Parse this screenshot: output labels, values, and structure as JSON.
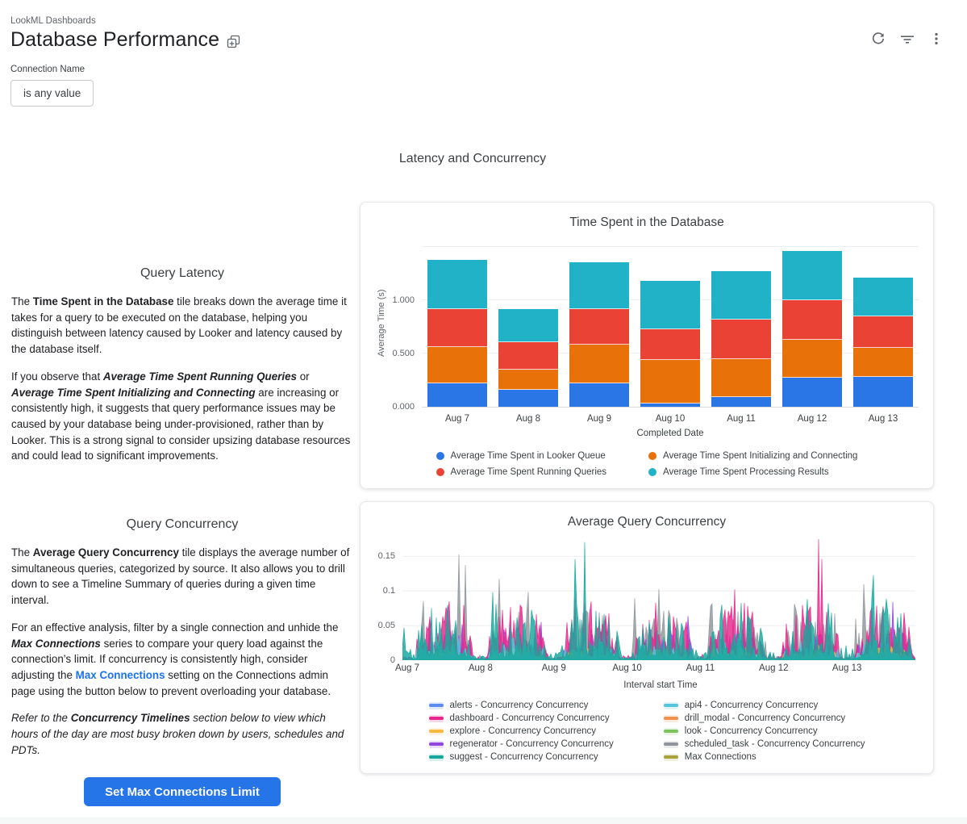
{
  "page": {
    "bottom_strip_color": "#f6f7f7"
  },
  "header": {
    "breadcrumb": "LookML Dashboards",
    "title": "Database Performance",
    "icons": {
      "duplicate": "copy-to-dashboard",
      "refresh": "refresh-circular-arrow",
      "filter": "filter-list-lines",
      "more": "kebab-menu-dots"
    }
  },
  "filter": {
    "label": "Connection Name",
    "value": "is any value"
  },
  "section": {
    "heading": "Latency and Concurrency"
  },
  "left": {
    "latency": {
      "heading": "Query Latency",
      "paragraphs": [
        [
          {
            "t": "The "
          },
          {
            "t": "Time Spent in the Database",
            "b": 1
          },
          {
            "t": " tile breaks down the average time it takes for a query to be executed on the database, helping you distinguish between latency caused by Looker and latency caused by the database itself."
          }
        ],
        [
          {
            "t": "If you observe that "
          },
          {
            "t": "Average Time Spent Running Queries",
            "b": 1,
            "i": 1
          },
          {
            "t": " or "
          },
          {
            "t": "Average Time Spent Initializing and Connecting",
            "b": 1,
            "i": 1
          },
          {
            "t": " are increasing or consistently high, it suggests that query performance issues may be caused by your database being under-provisioned, rather than by Looker. This is a strong signal to consider upsizing database resources and could lead to significant improvements."
          }
        ]
      ]
    },
    "concurrency": {
      "heading": "Query Concurrency",
      "paragraphs": [
        [
          {
            "t": "The "
          },
          {
            "t": "Average Query Concurrency",
            "b": 1
          },
          {
            "t": " tile displays the average number of simultaneous queries, categorized by source. It also allows you to drill down to see a Timeline Summary of queries during a given time interval."
          }
        ],
        [
          {
            "t": "For an effective analysis, filter by a single connection and unhide the "
          },
          {
            "t": "Max Connections",
            "b": 1,
            "i": 1
          },
          {
            "t": " series to compare your query load against the connection’s limit. If concurrency is consistently high, consider adjusting the "
          },
          {
            "t": "Max Connections",
            "link": 1
          },
          {
            "t": " setting on the Connections admin page using the button below to prevent overloading your database."
          }
        ],
        [
          {
            "t": "Refer to the ",
            "i": 1
          },
          {
            "t": "Concurrency Timelines",
            "b": 1,
            "i": 1
          },
          {
            "t": " section below to view which hours of the day are most busy broken down by users, schedules and PDTs.",
            "i": 1
          }
        ]
      ]
    },
    "button": "Set Max Connections Limit"
  },
  "chart_data": [
    {
      "type": "bar",
      "stacked": true,
      "title": "Time Spent in the Database",
      "xlabel": "Completed Date",
      "ylabel": "Average Time (s)",
      "categories": [
        "Aug 7",
        "Aug 8",
        "Aug 9",
        "Aug 10",
        "Aug 11",
        "Aug 12",
        "Aug 13"
      ],
      "ylim": [
        0,
        1.55
      ],
      "grid": true,
      "legend_position": "bottom",
      "y_ticks": [
        {
          "label": "0.000",
          "v": 0
        },
        {
          "label": "0.500",
          "v": 0.5
        },
        {
          "label": "1.000",
          "v": 1.0
        }
      ],
      "gridline_values": [
        0.5,
        1.0,
        1.5
      ],
      "series": [
        {
          "name": "Average Time Spent in Looker Queue",
          "color": "#2b76e7",
          "values": [
            0.22,
            0.16,
            0.22,
            0.03,
            0.09,
            0.27,
            0.28
          ]
        },
        {
          "name": "Average Time Spent Initializing and Connecting",
          "color": "#e8710a",
          "values": [
            0.34,
            0.19,
            0.36,
            0.41,
            0.36,
            0.36,
            0.27
          ]
        },
        {
          "name": "Average Time Spent Running Queries",
          "color": "#ea4335",
          "values": [
            0.36,
            0.26,
            0.34,
            0.29,
            0.37,
            0.37,
            0.3
          ]
        },
        {
          "name": "Average Time Spent Processing Results",
          "color": "#22b2c8",
          "values": [
            0.46,
            0.31,
            0.44,
            0.45,
            0.45,
            0.46,
            0.36
          ]
        }
      ],
      "totals": [
        1.38,
        0.92,
        1.36,
        1.18,
        1.27,
        1.46,
        1.21
      ]
    },
    {
      "type": "area",
      "title": "Average Query Concurrency",
      "xlabel": "Interval start Time",
      "x_ticks": [
        "Aug 7",
        "Aug 8",
        "Aug 9",
        "Aug 10",
        "Aug 11",
        "Aug 12",
        "Aug 13"
      ],
      "days": 7,
      "ylim": [
        0,
        0.175
      ],
      "grid": true,
      "legend_position": "bottom",
      "y_ticks": [
        {
          "label": "0",
          "v": 0
        },
        {
          "label": "0.05",
          "v": 0.05
        },
        {
          "label": "0.1",
          "v": 0.1
        },
        {
          "label": "0.15",
          "v": 0.15
        }
      ],
      "seed": 7,
      "active_window": [
        0.18,
        0.96
      ],
      "series": [
        {
          "name": "alerts - Concurrency Concurrency",
          "color": "#5b8def",
          "base": 0.005,
          "pw": 2.4
        },
        {
          "name": "api4 - Concurrency Concurrency",
          "color": "#53c6dc",
          "base": 0.013,
          "pw": 1.6
        },
        {
          "name": "dashboard - Concurrency Concurrency",
          "color": "#e6268c",
          "base": 0.034,
          "pw": 1.4
        },
        {
          "name": "drill_modal - Concurrency Concurrency",
          "color": "#f0924c",
          "base": 0.004,
          "pw": 2.4
        },
        {
          "name": "explore - Concurrency Concurrency",
          "color": "#f8b940",
          "base": 0.008,
          "pw": 2.4
        },
        {
          "name": "look - Concurrency Concurrency",
          "color": "#7cc25e",
          "base": 0.004,
          "pw": 2.4
        },
        {
          "name": "regenerator - Concurrency Concurrency",
          "color": "#9246e0",
          "base": 0.02,
          "pw": 1.9
        },
        {
          "name": "scheduled_task - Concurrency Concurrency",
          "color": "#8f959b",
          "base": 0.028,
          "pw": 2.4
        },
        {
          "name": "suggest - Concurrency Concurrency",
          "color": "#16a79c",
          "base": 0.03,
          "pw": 2.0
        },
        {
          "name": "Max Connections",
          "color": "#a9a23b",
          "base": 0,
          "pw": 1,
          "hidden": true
        }
      ],
      "draw_order": [
        7,
        6,
        2,
        4,
        3,
        5,
        0,
        1,
        8
      ],
      "peaks": [
        {
          "s": 8,
          "d": 0.02,
          "v": 0.05
        },
        {
          "s": 7,
          "d": 0.28,
          "v": 0.105
        },
        {
          "s": 7,
          "d": 0.77,
          "v": 0.155
        },
        {
          "s": 8,
          "d": 0.62,
          "v": 0.09
        },
        {
          "s": 8,
          "d": 1.28,
          "v": 0.09
        },
        {
          "s": 7,
          "d": 1.71,
          "v": 0.125
        },
        {
          "s": 8,
          "d": 1.77,
          "v": 0.1
        },
        {
          "s": 8,
          "d": 2.36,
          "v": 0.17
        },
        {
          "s": 7,
          "d": 2.52,
          "v": 0.105
        },
        {
          "s": 8,
          "d": 2.75,
          "v": 0.07
        },
        {
          "s": 7,
          "d": 3.17,
          "v": 0.09
        },
        {
          "s": 7,
          "d": 3.5,
          "v": 0.103
        },
        {
          "s": 7,
          "d": 3.64,
          "v": 0.095
        },
        {
          "s": 6,
          "d": 3.9,
          "v": 0.072
        },
        {
          "s": 7,
          "d": 4.2,
          "v": 0.09
        },
        {
          "s": 8,
          "d": 4.35,
          "v": 0.108
        },
        {
          "s": 8,
          "d": 4.62,
          "v": 0.09
        },
        {
          "s": 7,
          "d": 5.38,
          "v": 0.1
        },
        {
          "s": 8,
          "d": 5.52,
          "v": 0.105
        },
        {
          "s": 8,
          "d": 5.85,
          "v": 0.082
        },
        {
          "s": 7,
          "d": 6.3,
          "v": 0.127
        },
        {
          "s": 8,
          "d": 6.42,
          "v": 0.16
        },
        {
          "s": 8,
          "d": 6.6,
          "v": 0.1
        },
        {
          "s": 8,
          "d": 6.8,
          "v": 0.072
        }
      ]
    }
  ]
}
